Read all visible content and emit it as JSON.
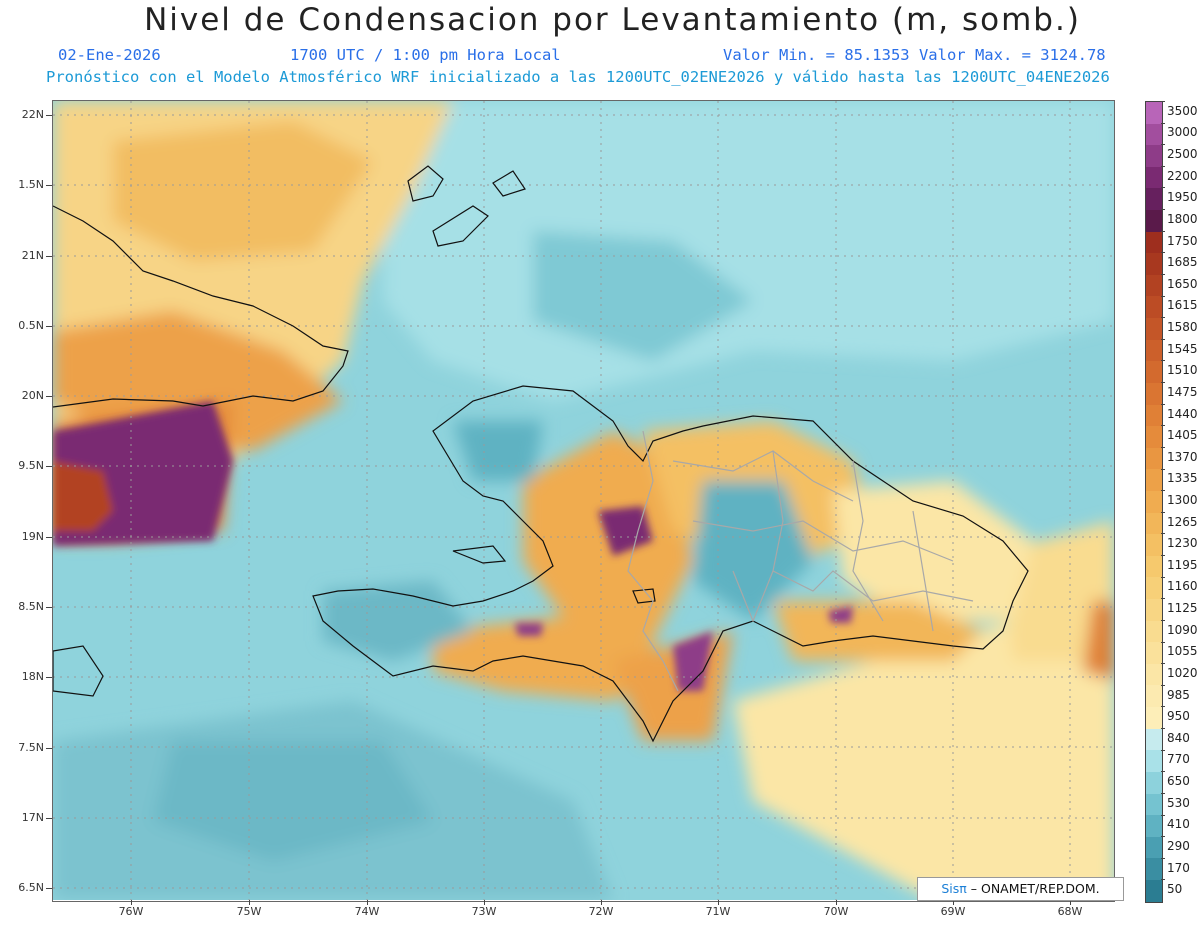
{
  "header": {
    "title": "Nivel de Condensacion por Levantamiento (m, somb.)",
    "date": "02-Ene-2026",
    "time": "1700 UTC / 1:00 pm Hora Local",
    "min_max": "Valor Min. = 85.1353  Valor Max. = 3124.78",
    "forecast_info": "Pronóstico con el Modelo Atmosférico WRF inicializado a las 1200UTC_02ENE2026 y válido hasta las  1200UTC_04ENE2026"
  },
  "lat_labels": [
    "22N",
    "1.5N",
    "21N",
    "0.5N",
    "20N",
    "9.5N",
    "19N",
    "8.5N",
    "18N",
    "7.5N",
    "17N",
    "6.5N"
  ],
  "lon_labels": [
    "76W",
    "75W",
    "74W",
    "73W",
    "72W",
    "71W",
    "70W",
    "69W",
    "68W"
  ],
  "colorbar": {
    "labels": [
      "3500",
      "3000",
      "2500",
      "2200",
      "1950",
      "1800",
      "1750",
      "1685",
      "1650",
      "1615",
      "1580",
      "1545",
      "1510",
      "1475",
      "1440",
      "1405",
      "1370",
      "1335",
      "1300",
      "1265",
      "1230",
      "1195",
      "1160",
      "1125",
      "1090",
      "1055",
      "1020",
      "985",
      "950",
      "840",
      "770",
      "650",
      "530",
      "410",
      "290",
      "170",
      "50"
    ],
    "colors": [
      "#b865b8",
      "#a24e9e",
      "#8e3c88",
      "#7a2a72",
      "#66205e",
      "#5a1a4a",
      "#9e2e1e",
      "#a8381f",
      "#b24222",
      "#bc4c25",
      "#c45628",
      "#cc602b",
      "#d36a2e",
      "#da7532",
      "#e08036",
      "#e58b3b",
      "#e99641",
      "#eda148",
      "#f0ac50",
      "#f2b659",
      "#f4c063",
      "#f6c96d",
      "#f7d078",
      "#f8d684",
      "#f9dc90",
      "#faE19b",
      "#fbe6a6",
      "#fceab0",
      "#fdeeb8",
      "#c6ebee",
      "#a9e1e8",
      "#8dd2dc",
      "#75c3d0",
      "#5fb2c2",
      "#4a9fb2",
      "#3a8ea2",
      "#2b7d92"
    ]
  },
  "credit": {
    "logo": "Sisπ",
    "text": " – ONAMET/REP.DOM."
  }
}
